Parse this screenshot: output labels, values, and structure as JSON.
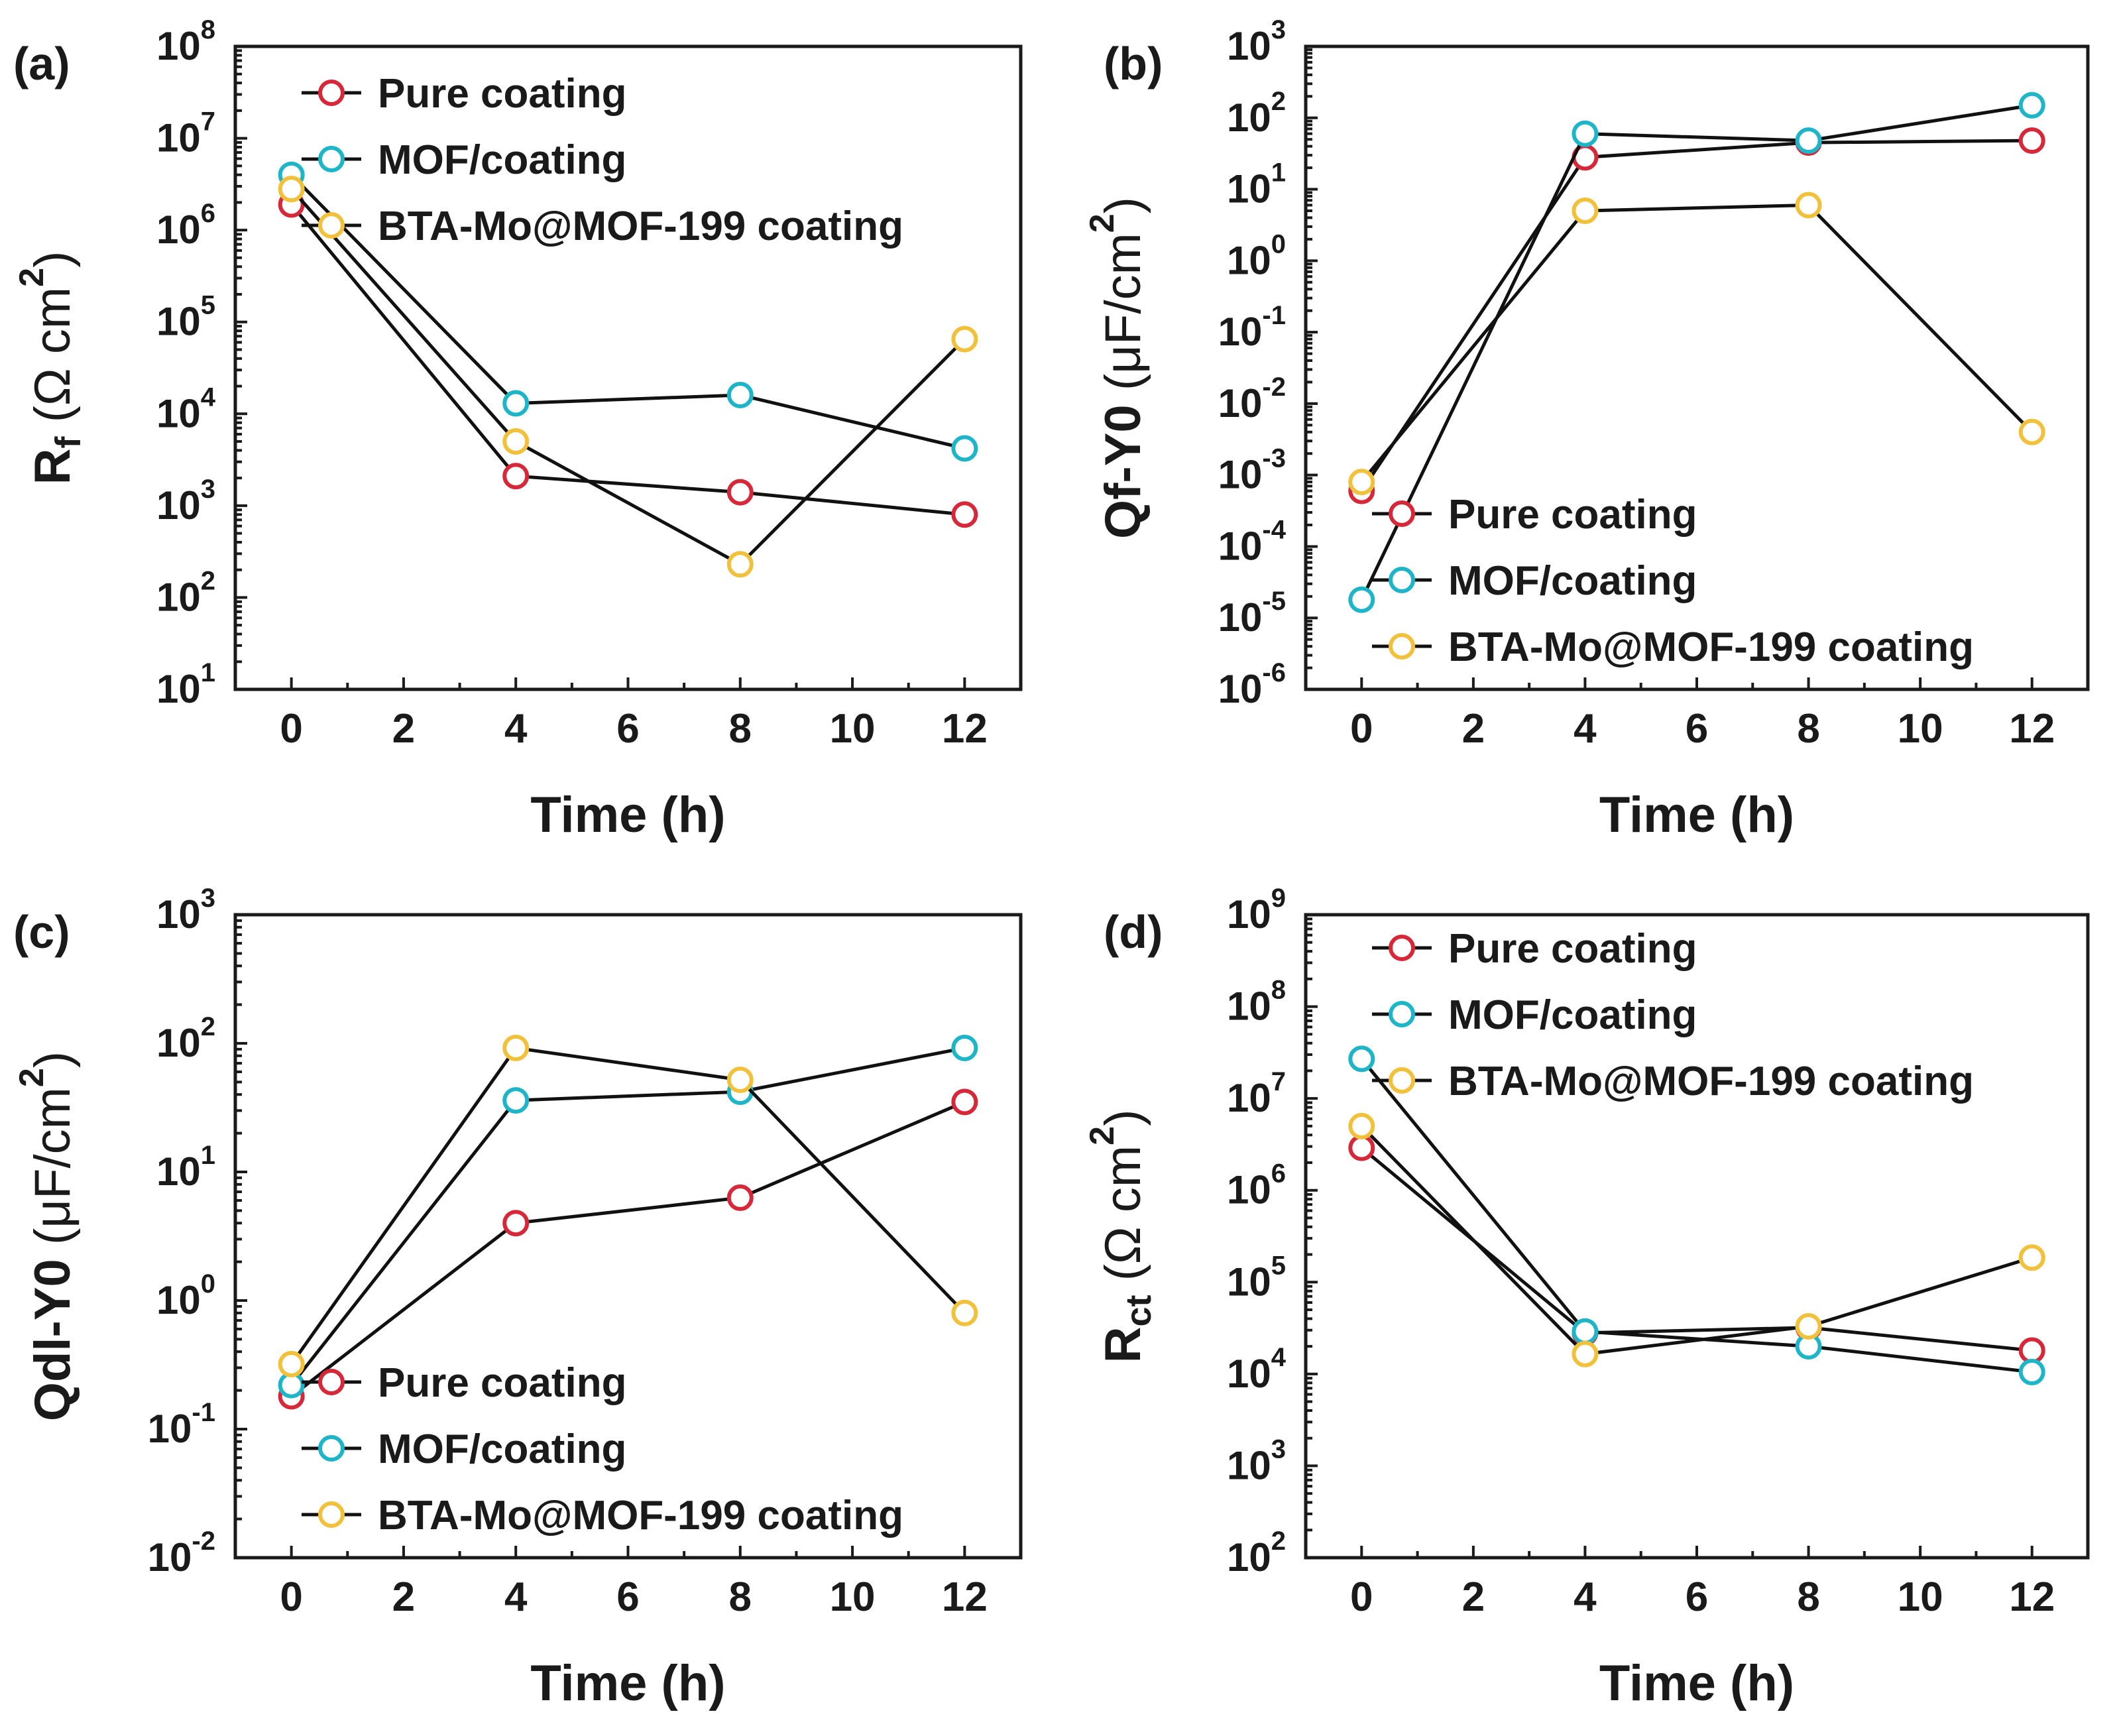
{
  "series_colors": {
    "Pure coating": "#d62839",
    "MOF/coating": "#1fb5c9",
    "BTA-Mo@MOF-199 coating": "#f2c13c"
  },
  "chart_data": [
    {
      "panel": "(a)",
      "type": "line",
      "yscale": "log",
      "xlabel": "Time (h)",
      "ylabel": {
        "main": "R",
        "sub": "f",
        "rest": " (Ω cm",
        "sup": "2",
        "end": ")"
      },
      "xlim": [
        -1,
        13
      ],
      "xticks": [
        0,
        2,
        4,
        6,
        8,
        10,
        12
      ],
      "ylim_exp": [
        1,
        8
      ],
      "legend_position": "top-left",
      "x": [
        0,
        4,
        8,
        12
      ],
      "series": [
        {
          "name": "Pure coating",
          "values": [
            1900000,
            2100,
            1400,
            800
          ]
        },
        {
          "name": "MOF/coating",
          "values": [
            4000000,
            13000,
            16000,
            4200
          ]
        },
        {
          "name": "BTA-Mo@MOF-199 coating",
          "values": [
            2800000,
            5000,
            230,
            65000
          ]
        }
      ]
    },
    {
      "panel": "(b)",
      "type": "line",
      "yscale": "log",
      "xlabel": "Time (h)",
      "ylabel": {
        "main": "Qf-Y0",
        "sub": "",
        "rest": " (μF/cm",
        "sup": "2",
        "end": ")"
      },
      "xlim": [
        -1,
        13
      ],
      "xticks": [
        0,
        2,
        4,
        6,
        8,
        10,
        12
      ],
      "ylim_exp": [
        -6,
        3
      ],
      "legend_position": "bottom-left",
      "x": [
        0,
        4,
        8,
        12
      ],
      "series": [
        {
          "name": "Pure coating",
          "values": [
            0.0006,
            28,
            45,
            48
          ]
        },
        {
          "name": "MOF/coating",
          "values": [
            1.8e-05,
            60,
            48,
            150
          ]
        },
        {
          "name": "BTA-Mo@MOF-199 coating",
          "values": [
            0.0008,
            5,
            6,
            0.004
          ]
        }
      ]
    },
    {
      "panel": "(c)",
      "type": "line",
      "yscale": "log",
      "xlabel": "Time (h)",
      "ylabel": {
        "main": "Qdl-Y0",
        "sub": "",
        "rest": " (μF/cm",
        "sup": "2",
        "end": ")"
      },
      "xlim": [
        -1,
        13
      ],
      "xticks": [
        0,
        2,
        4,
        6,
        8,
        10,
        12
      ],
      "ylim_exp": [
        -2,
        3
      ],
      "legend_position": "bottom-left",
      "x": [
        0,
        4,
        8,
        12
      ],
      "series": [
        {
          "name": "Pure coating",
          "values": [
            0.18,
            4,
            6.3,
            35
          ]
        },
        {
          "name": "MOF/coating",
          "values": [
            0.22,
            36,
            42,
            92
          ]
        },
        {
          "name": "BTA-Mo@MOF-199 coating",
          "values": [
            0.32,
            92,
            52,
            0.8
          ]
        }
      ]
    },
    {
      "panel": "(d)",
      "type": "line",
      "yscale": "log",
      "xlabel": "Time (h)",
      "ylabel": {
        "main": "R",
        "sub": "ct",
        "rest": " (Ω cm",
        "sup": "2",
        "end": ")"
      },
      "xlim": [
        -1,
        13
      ],
      "xticks": [
        0,
        2,
        4,
        6,
        8,
        10,
        12
      ],
      "ylim_exp": [
        2,
        9
      ],
      "legend_position": "top-left",
      "x": [
        0,
        4,
        8,
        12
      ],
      "series": [
        {
          "name": "Pure coating",
          "values": [
            2900000,
            28000,
            32000,
            18000
          ]
        },
        {
          "name": "MOF/coating",
          "values": [
            27000000,
            29000,
            20000,
            10500
          ]
        },
        {
          "name": "BTA-Mo@MOF-199 coating",
          "values": [
            5000000,
            16500,
            33000,
            185000
          ]
        }
      ]
    }
  ]
}
